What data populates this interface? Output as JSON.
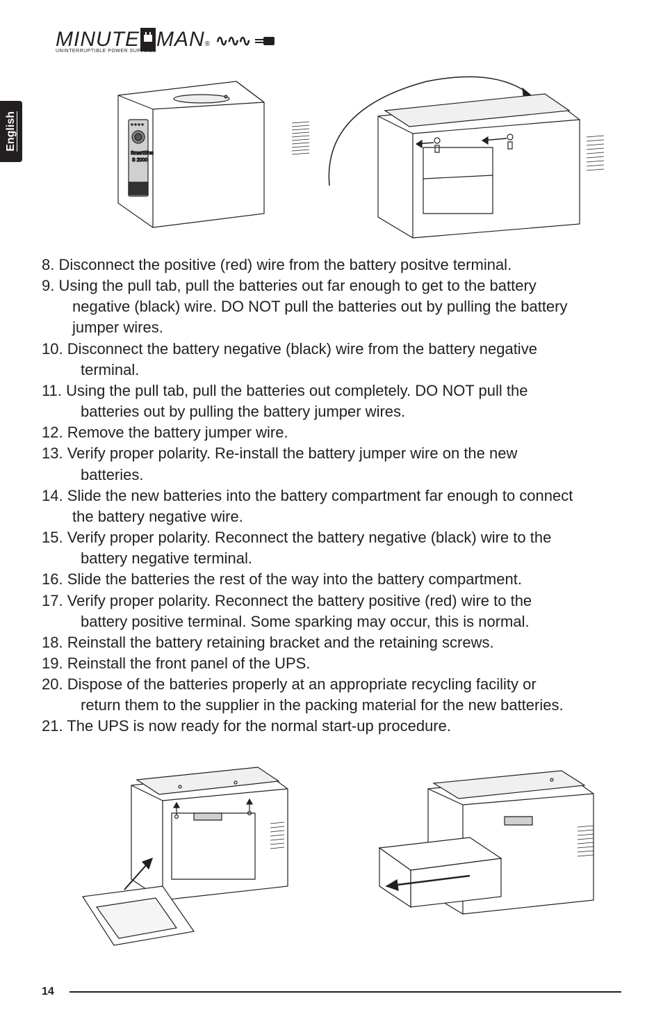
{
  "logo": {
    "brand_pre": "MINUTE",
    "brand_post": "MAN",
    "tagline": "UNINTERRUPTIBLE POWER SUPPLIES",
    "wave": "∿∿∿"
  },
  "side_tab": {
    "label": "English"
  },
  "steps": [
    {
      "n": "8.",
      "text": "Disconnect the positive (red) wire from the battery positve terminal.",
      "indent": "cont"
    },
    {
      "n": "9.",
      "text": "Using the pull tab, pull the batteries out far enough to get to the battery",
      "indent": "cont"
    },
    {
      "n": "",
      "text": "negative (black) wire.  DO NOT pull the batteries out by pulling the battery",
      "indent": "cont"
    },
    {
      "n": "",
      "text": "jumper wires.",
      "indent": "cont"
    },
    {
      "n": "10.",
      "text": "Disconnect the battery negative (black) wire from the battery negative",
      "indent": "cont"
    },
    {
      "n": "",
      "text": "terminal.",
      "indent": "cont2"
    },
    {
      "n": "11.",
      "text": "Using the pull tab, pull the batteries out completely.  DO NOT pull the",
      "indent": "cont"
    },
    {
      "n": "",
      "text": "batteries out by pulling the battery jumper wires.",
      "indent": "cont2"
    },
    {
      "n": "12.",
      "text": "Remove the battery jumper wire.",
      "indent": "cont"
    },
    {
      "n": "13.",
      "text": "Verify proper polarity.  Re-install the battery jumper wire on the new",
      "indent": "cont"
    },
    {
      "n": "",
      "text": "batteries.",
      "indent": "cont2"
    },
    {
      "n": "14.",
      "text": "Slide the  new batteries into the battery compartment far enough to connect",
      "indent": "cont"
    },
    {
      "n": "",
      "text": "the battery negative wire.",
      "indent": "cont"
    },
    {
      "n": "15.",
      "text": "Verify proper polarity.  Reconnect the battery negative (black) wire to the",
      "indent": "cont"
    },
    {
      "n": "",
      "text": "battery negative terminal.",
      "indent": "cont2"
    },
    {
      "n": "16.",
      "text": "Slide the batteries the rest of the way into the battery compartment.",
      "indent": "cont"
    },
    {
      "n": "17.",
      "text": "Verify proper polarity.  Reconnect the battery positive (red) wire to the",
      "indent": "cont"
    },
    {
      "n": "",
      "text": "battery positive terminal.  Some sparking may occur, this is normal.",
      "indent": "cont2"
    },
    {
      "n": "18.",
      "text": "Reinstall the battery retaining bracket and the retaining screws.",
      "indent": "cont"
    },
    {
      "n": "19.",
      "text": "Reinstall the front panel of the UPS.",
      "indent": "cont"
    },
    {
      "n": "20.",
      "text": "Dispose of the batteries properly at an appropriate recycling facility or",
      "indent": "cont"
    },
    {
      "n": "",
      "text": "return them to the supplier in the packing material for the new batteries.",
      "indent": "cont2"
    },
    {
      "n": "21.",
      "text": "The UPS is now ready for the normal start-up procedure.",
      "indent": "cont"
    }
  ],
  "page_number": "14",
  "colors": {
    "text": "#231f20",
    "bg": "#ffffff"
  }
}
